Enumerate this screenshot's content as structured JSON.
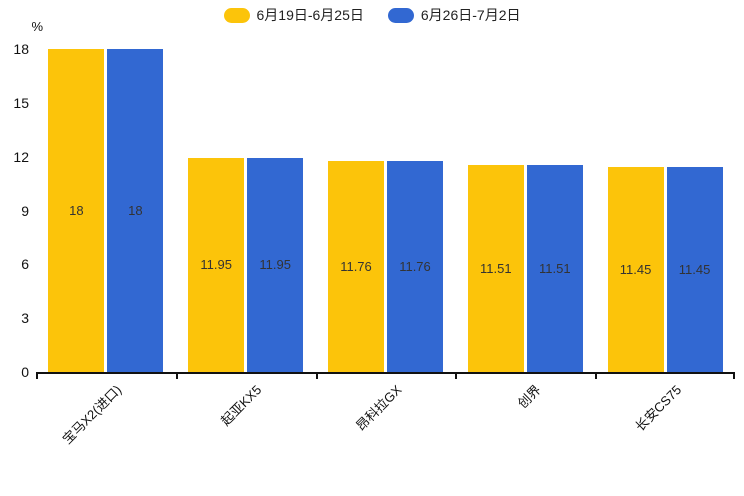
{
  "chart_data": {
    "type": "bar",
    "categories": [
      "宝马X2(进口)",
      "起亚KX5",
      "昂科拉GX",
      "创界",
      "长安CS75"
    ],
    "series": [
      {
        "name": "6月19日-6月25日",
        "color": "#FCC40A",
        "values": [
          18,
          11.95,
          11.76,
          11.51,
          11.45
        ]
      },
      {
        "name": "6月26日-7月2日",
        "color": "#3268D2",
        "values": [
          18,
          11.95,
          11.76,
          11.51,
          11.45
        ]
      }
    ],
    "value_labels": [
      [
        "18",
        "11.95",
        "11.76",
        "11.51",
        "11.45"
      ],
      [
        "18",
        "11.95",
        "11.76",
        "11.51",
        "11.45"
      ]
    ],
    "title": "",
    "xlabel": "",
    "ylabel": "%",
    "ylim": [
      0,
      18
    ],
    "yticks": [
      0,
      3,
      6,
      9,
      12,
      15,
      18
    ],
    "legend_position": "top",
    "grid": false,
    "colors": {
      "axis": "#111111",
      "tick_text": "#111111",
      "bar_label_text": "#333333",
      "background": "#ffffff"
    }
  }
}
